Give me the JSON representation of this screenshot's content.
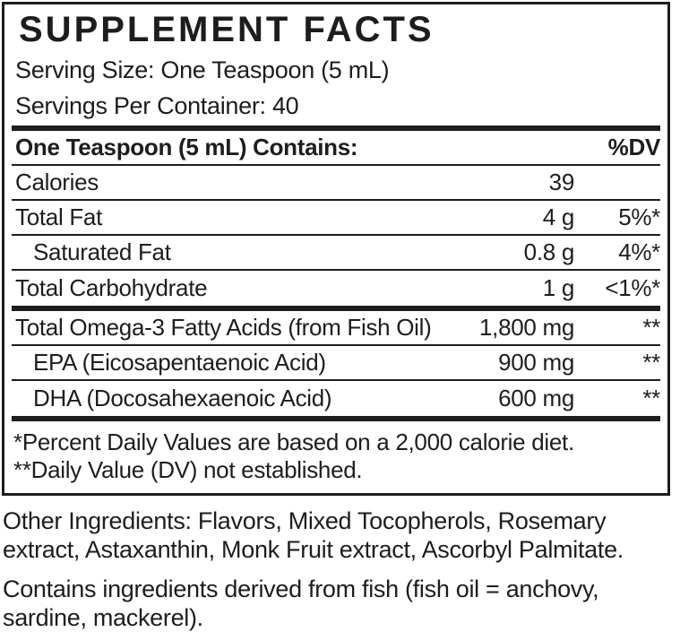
{
  "colors": {
    "text": "#1d1d1b",
    "background": "#ffffff"
  },
  "label": {
    "title": "SUPPLEMENT FACTS",
    "serving_size": "Serving Size: One Teaspoon (5 mL)",
    "servings_per_container": "Servings Per Container: 40",
    "header": {
      "contains": "One Teaspoon (5 mL) Contains:",
      "dv": "%DV"
    },
    "rows": [
      {
        "name": "Calories",
        "amount": "39",
        "dv": ""
      },
      {
        "name": "Total Fat",
        "amount": "4 g",
        "dv": "5%*"
      },
      {
        "name": "Saturated Fat",
        "amount": "0.8 g",
        "dv": "4%*"
      },
      {
        "name": "Total Carbohydrate",
        "amount": "1 g",
        "dv": "<1%*"
      },
      {
        "name": "Total Omega-3 Fatty Acids (from Fish Oil)",
        "amount": "1,800 mg",
        "dv": "**"
      },
      {
        "name": "EPA (Eicosapentaenoic Acid)",
        "amount": "900 mg",
        "dv": "**"
      },
      {
        "name": "DHA (Docosahexaenoic Acid)",
        "amount": "600 mg",
        "dv": "**"
      }
    ],
    "footnotes": [
      "*Percent Daily Values are based on a 2,000 calorie diet.",
      "**Daily Value (DV) not established."
    ],
    "other_ingredients": "Other Ingredients: Flavors, Mixed Tocopherols, Rosemary extract, Astaxanthin, Monk Fruit extract, Ascorbyl Palmitate.",
    "allergen_statement": "Contains ingredients derived from fish (fish oil = anchovy, sardine, mackerel)."
  }
}
